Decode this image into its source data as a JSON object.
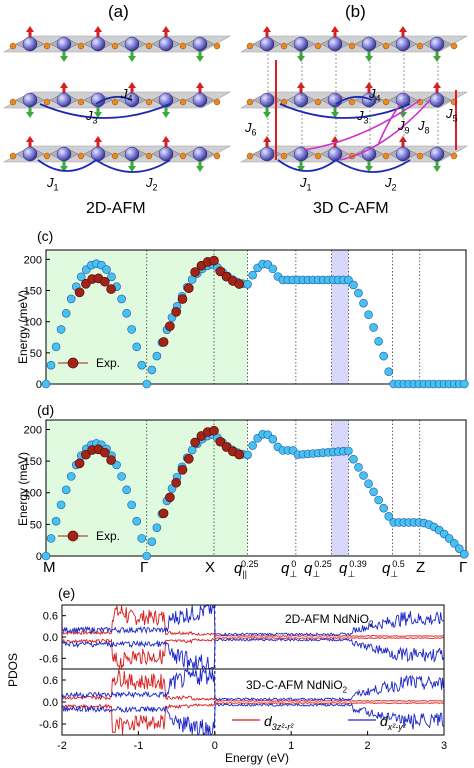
{
  "panels": {
    "a": {
      "label": "(a)",
      "caption": "2D-AFM",
      "couplings": [
        "J",
        "J",
        "J",
        "J"
      ],
      "coupling_subs": [
        "1",
        "2",
        "3",
        "4"
      ]
    },
    "b": {
      "label": "(b)",
      "caption": "3D C-AFM",
      "couplings": [
        "J",
        "J",
        "J",
        "J",
        "J",
        "J",
        "J",
        "J"
      ],
      "coupling_subs": [
        "1",
        "2",
        "3",
        "4",
        "5",
        "6",
        "8",
        "9"
      ]
    },
    "c": {
      "label": "(c)",
      "ylabel": "Energy (meV)",
      "legend": "Exp.",
      "yticks": [
        "0",
        "50",
        "100",
        "150",
        "200"
      ]
    },
    "d": {
      "label": "(d)",
      "ylabel": "Energy (meV)",
      "legend": "Exp.",
      "yticks": [
        "0",
        "50",
        "100",
        "150",
        "200"
      ],
      "xticks": [
        "M",
        "Γ",
        "X",
        "q",
        "q",
        "q",
        "q",
        "q",
        "Z",
        "Γ"
      ],
      "xtick_subs": [
        "",
        "",
        "",
        "||",
        "⊥",
        "⊥",
        "⊥",
        "⊥",
        "",
        ""
      ],
      "xtick_sups": [
        "",
        "",
        "",
        "0.25",
        "0",
        "0.25",
        "0.39",
        "0.5",
        "",
        ""
      ]
    },
    "e": {
      "label": "(e)",
      "ylabel": "PDOS",
      "xlabel": "Energy (eV)",
      "xticks": [
        "-2",
        "-1",
        "0",
        "1",
        "2",
        "3"
      ],
      "yticks_top": [
        "0.6",
        "0.0",
        "-0.6"
      ],
      "yticks_bottom": [
        "0.6",
        "0.0",
        "-0.6"
      ],
      "title_top": "2D-AFM NdNiO",
      "title_top_sub": "2",
      "title_bottom": "3D-C-AFM NdNiO",
      "title_bottom_sub": "2",
      "legend_red": "d",
      "legend_red_sub": "3z²-r²",
      "legend_blue": "d",
      "legend_blue_sub": "x²-y²"
    }
  },
  "colors": {
    "calc_fill": "#48c0f0",
    "calc_edge": "#1e5aa8",
    "exp_fill": "#a02418",
    "exp_edge": "#5a0c08",
    "green_shade": "#e0fae0",
    "blue_shade": "#d8d8fa",
    "red_line": "#d81e1e",
    "blue_line": "#1e28c8",
    "coupling_blue": "#1e2ab0",
    "coupling_red": "#d81e28",
    "coupling_magenta": "#d030c8"
  },
  "chart_data": [
    {
      "type": "scatter",
      "panel": "c",
      "ylim": [
        0,
        215
      ],
      "path_segments": [
        "M-Γ",
        "Γ-X",
        "X-q∥0.25",
        "q∥0.25-q⊥0",
        "q⊥0-q⊥0.25",
        "q⊥0.25-q⊥0.39",
        "q⊥0.39-q⊥0.5",
        "q⊥0.5-Z",
        "Z-Γ"
      ],
      "series": [
        {
          "name": "",
          "k": [
            0,
            0.5,
            1,
            1.5,
            2,
            2.5,
            3,
            3.15
          ],
          "E": [
            0,
            110,
            180,
            193,
            176,
            120,
            30,
            0
          ]
        },
        {
          "name": "Exp.",
          "k": [
            1.5,
            2,
            2.5,
            5,
            5.5,
            6,
            6.5,
            7,
            7.5,
            8,
            8.5,
            8.8,
            9.2
          ],
          "E": [
            150,
            168,
            152,
            130,
            165,
            185,
            193,
            199,
            200,
            196,
            185,
            172,
            160
          ]
        }
      ]
    },
    {
      "type": "scatter",
      "panel": "d",
      "ylim": [
        0,
        215
      ],
      "series": [
        {
          "name": "",
          "k": [
            0,
            0.5,
            1,
            1.5,
            2,
            2.5,
            3,
            3.15
          ],
          "E": [
            0,
            108,
            170,
            178,
            165,
            110,
            28,
            0
          ]
        },
        {
          "name": "Exp.",
          "k": [
            1.5,
            2,
            2.5,
            5,
            5.5,
            6,
            6.5,
            7,
            7.5,
            8,
            8.5,
            8.8,
            9.2
          ],
          "E": [
            150,
            168,
            152,
            130,
            165,
            185,
            193,
            199,
            200,
            196,
            185,
            172,
            160
          ]
        }
      ]
    },
    {
      "type": "line",
      "panel": "e",
      "xlim": [
        -2,
        3
      ],
      "ylim": [
        -0.9,
        0.9
      ]
    }
  ]
}
